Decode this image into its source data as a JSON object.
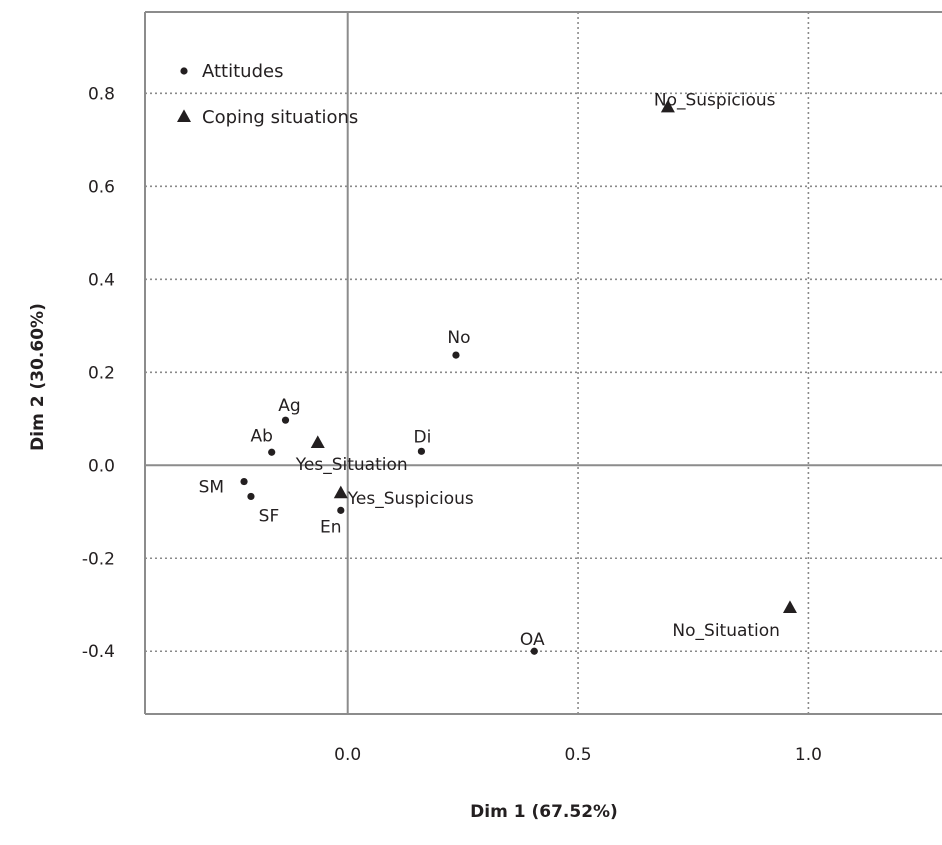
{
  "chart_data": {
    "type": "scatter",
    "xlabel": "Dim 1 (67.52%)",
    "ylabel": "Dim 2 (30.60%)",
    "xlim": [
      -0.44,
      1.29
    ],
    "ylim": [
      -0.535,
      0.975
    ],
    "x_ticks": [
      {
        "value": 0.0,
        "label": "0.0"
      },
      {
        "value": 0.5,
        "label": "0.5"
      },
      {
        "value": 1.0,
        "label": "1.0"
      }
    ],
    "y_ticks": [
      {
        "value": 0.8,
        "label": "0.8"
      },
      {
        "value": 0.6,
        "label": "0.6"
      },
      {
        "value": 0.4,
        "label": "0.4"
      },
      {
        "value": 0.2,
        "label": "0.2"
      },
      {
        "value": 0.0,
        "label": "0.0"
      },
      {
        "value": -0.2,
        "label": "-0.2"
      },
      {
        "value": -0.4,
        "label": "-0.4"
      }
    ],
    "grid": "dotted",
    "legend_position": "top-left",
    "series": [
      {
        "name": "Attitudes",
        "marker": "circle",
        "points": [
          {
            "label": "Ag",
            "x": -0.135,
            "y": 0.097
          },
          {
            "label": "Ab",
            "x": -0.165,
            "y": 0.028
          },
          {
            "label": "SM",
            "x": -0.225,
            "y": -0.035
          },
          {
            "label": "SF",
            "x": -0.21,
            "y": -0.067
          },
          {
            "label": "En",
            "x": -0.015,
            "y": -0.097
          },
          {
            "label": "Di",
            "x": 0.16,
            "y": 0.03
          },
          {
            "label": "No",
            "x": 0.235,
            "y": 0.237
          },
          {
            "label": "OA",
            "x": 0.405,
            "y": -0.4
          }
        ]
      },
      {
        "name": "Coping situations",
        "marker": "triangle",
        "points": [
          {
            "label": "Yes_Situation",
            "x": -0.065,
            "y": 0.05
          },
          {
            "label": "Yes_Suspicious",
            "x": -0.015,
            "y": -0.058
          },
          {
            "label": "No_Suspicious",
            "x": 0.695,
            "y": 0.772
          },
          {
            "label": "No_Situation",
            "x": 0.96,
            "y": -0.305
          }
        ]
      }
    ]
  }
}
